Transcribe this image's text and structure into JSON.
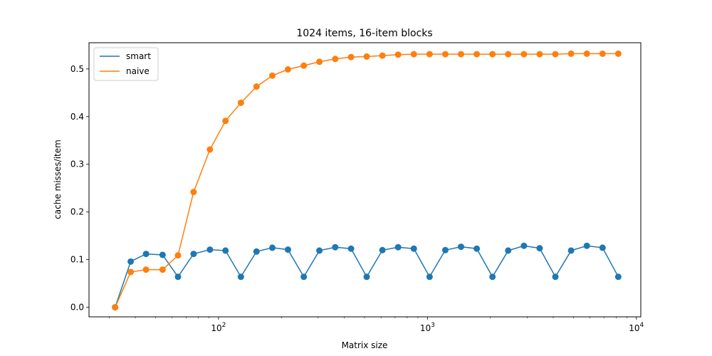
{
  "chart_data": {
    "type": "line",
    "title": "1024 items, 16-item blocks",
    "xlabel": "Matrix size",
    "ylabel": "cache misses/item",
    "xscale": "log",
    "xlim": [
      24,
      10500
    ],
    "ylim": [
      -0.02,
      0.555
    ],
    "xticks": [
      {
        "value": 100,
        "base": "10",
        "exp": "2"
      },
      {
        "value": 1000,
        "base": "10",
        "exp": "3"
      },
      {
        "value": 10000,
        "base": "10",
        "exp": "4"
      }
    ],
    "yticks": [
      {
        "value": 0.0,
        "label": "0.0"
      },
      {
        "value": 0.1,
        "label": "0.1"
      },
      {
        "value": 0.2,
        "label": "0.2"
      },
      {
        "value": 0.3,
        "label": "0.3"
      },
      {
        "value": 0.4,
        "label": "0.4"
      },
      {
        "value": 0.5,
        "label": "0.5"
      }
    ],
    "grid": false,
    "legend_position": "top-left",
    "x": [
      32,
      38,
      45,
      54,
      64,
      76,
      91,
      108,
      128,
      152,
      181,
      215,
      256,
      304,
      362,
      431,
      512,
      609,
      724,
      861,
      1024,
      1218,
      1448,
      1722,
      2048,
      2435,
      2896,
      3444,
      4096,
      4871,
      5793,
      6889,
      8192
    ],
    "series": [
      {
        "name": "smart",
        "color": "#1f77b4",
        "values": [
          0.0,
          0.096,
          0.112,
          0.11,
          0.064,
          0.112,
          0.121,
          0.119,
          0.064,
          0.117,
          0.125,
          0.121,
          0.064,
          0.119,
          0.126,
          0.123,
          0.064,
          0.12,
          0.126,
          0.123,
          0.064,
          0.12,
          0.127,
          0.123,
          0.064,
          0.119,
          0.129,
          0.124,
          0.064,
          0.119,
          0.129,
          0.125,
          0.064
        ]
      },
      {
        "name": "naive",
        "color": "#ff7f0e",
        "values": [
          0.0,
          0.074,
          0.079,
          0.079,
          0.109,
          0.242,
          0.331,
          0.391,
          0.429,
          0.463,
          0.486,
          0.499,
          0.507,
          0.515,
          0.521,
          0.525,
          0.526,
          0.528,
          0.53,
          0.531,
          0.531,
          0.531,
          0.531,
          0.531,
          0.531,
          0.531,
          0.531,
          0.531,
          0.531,
          0.532,
          0.532,
          0.532,
          0.532
        ]
      }
    ]
  }
}
